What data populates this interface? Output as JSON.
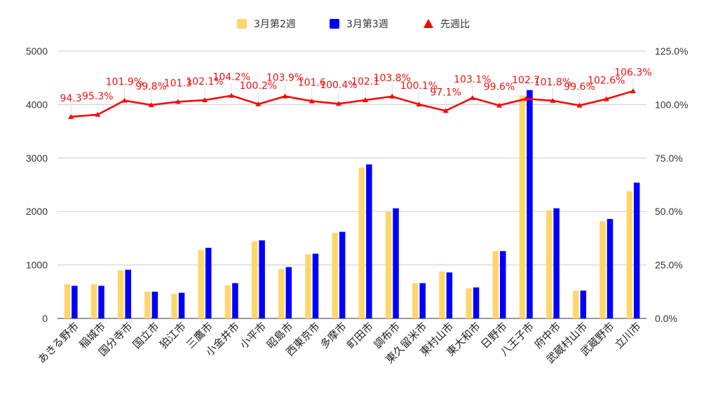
{
  "chart_data": {
    "type": "bar",
    "categories": [
      "あきる野市",
      "稲城市",
      "国分寺市",
      "国立市",
      "狛江市",
      "三鷹市",
      "小金井市",
      "小平市",
      "昭島市",
      "西東京市",
      "多摩市",
      "町田市",
      "調布市",
      "東久留米市",
      "東村山市",
      "東大和市",
      "日野市",
      "八王子市",
      "府中市",
      "武蔵村山市",
      "武蔵野市",
      "立川市"
    ],
    "series": [
      {
        "name": "3月第2週",
        "type": "bar",
        "axis": "left",
        "color": "#ffd66b",
        "values": [
          640,
          640,
          900,
          500,
          460,
          1280,
          620,
          1440,
          920,
          1200,
          1600,
          2820,
          1990,
          660,
          880,
          560,
          1260,
          4170,
          2020,
          520,
          1820,
          2380
        ]
      },
      {
        "name": "3月第3週",
        "type": "bar",
        "axis": "left",
        "color": "#0000ff",
        "values": [
          610,
          610,
          910,
          500,
          480,
          1320,
          660,
          1460,
          960,
          1210,
          1620,
          2880,
          2060,
          660,
          860,
          580,
          1260,
          4270,
          2060,
          520,
          1860,
          2540
        ]
      },
      {
        "name": "先週比",
        "type": "line",
        "axis": "right",
        "color": "#ff0000",
        "unit": "%",
        "values": [
          94.3,
          95.3,
          101.9,
          99.8,
          101.3,
          102.1,
          104.2,
          100.2,
          103.9,
          101.6,
          100.4,
          102.1,
          103.8,
          100.1,
          97.1,
          103.1,
          99.6,
          102.7,
          101.8,
          99.6,
          102.6,
          106.3
        ],
        "labels": [
          "94.3",
          "95.3%",
          "101.9%",
          "99.8%",
          "101.3",
          "102.1%",
          "104.2%",
          "100.2%",
          "103.9%",
          "101.6",
          "100.4%",
          "102.1",
          "103.8%",
          "100.1%",
          "97.1%",
          "103.1%",
          "99.6%",
          "102.7",
          "101.8%",
          "99.6%",
          "102.6%",
          "106.3%"
        ]
      }
    ],
    "y_left": {
      "min": 0,
      "max": 5000,
      "ticks": [
        "0",
        "1000",
        "2000",
        "3000",
        "4000",
        "5000"
      ]
    },
    "y_right": {
      "min": 0,
      "max": 125,
      "ticks": [
        "0.0%",
        "25.0%",
        "50.0%",
        "75.0%",
        "100.0%",
        "125.0%"
      ]
    },
    "legend": {
      "position": "top",
      "items": [
        "3月第2週",
        "3月第3週",
        "先週比"
      ]
    },
    "grid": true,
    "title": "",
    "xlabel": "",
    "ylabel": ""
  }
}
